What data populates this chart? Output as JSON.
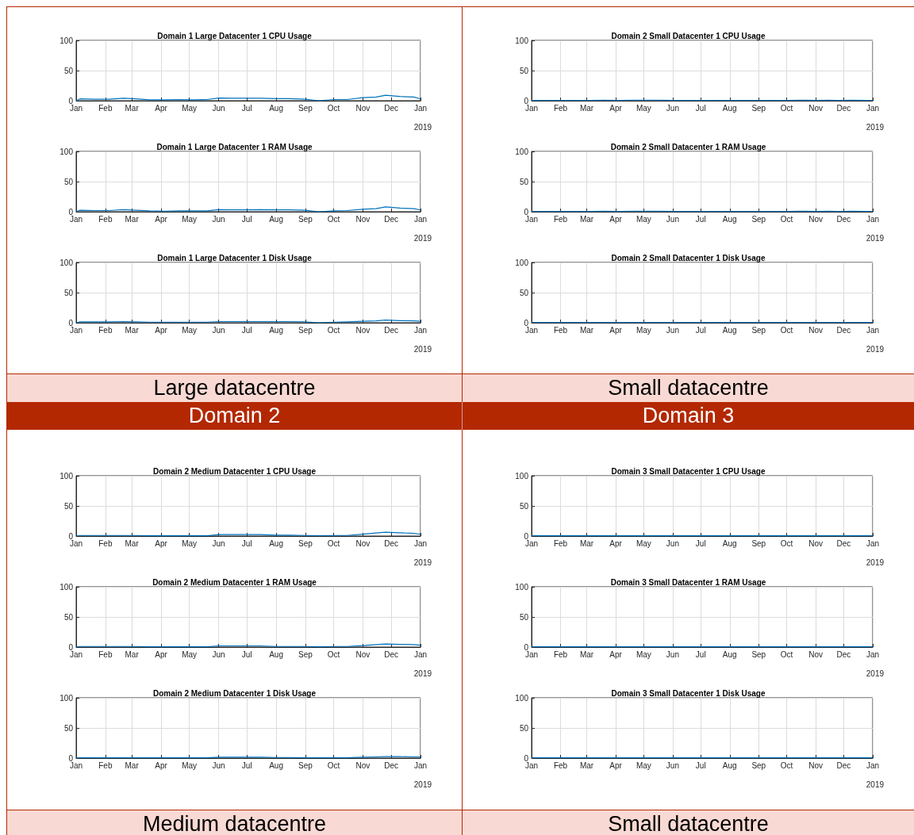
{
  "chart_data": [
    {
      "type": "line",
      "title": "Domain 1 Large Datacenter 1 CPU Usage",
      "xlabel": "2019",
      "annotations": [
        "Large datacentre"
      ],
      "color": "#0072bd",
      "grid": true,
      "xlim": [
        "2018-01-01",
        "2019-01-01"
      ],
      "xticks": [
        {
          "value": "2018-01-01",
          "label": "Jan"
        },
        {
          "value": "2018-02-01",
          "label": "Feb"
        },
        {
          "value": "2018-03-01",
          "label": "Mar"
        },
        {
          "value": "2018-04-01",
          "label": "Apr"
        },
        {
          "value": "2018-05-01",
          "label": "May"
        },
        {
          "value": "2018-06-01",
          "label": "Jun"
        },
        {
          "value": "2018-07-01",
          "label": "Jul"
        },
        {
          "value": "2018-08-01",
          "label": "Aug"
        },
        {
          "value": "2018-09-01",
          "label": "Sep"
        },
        {
          "value": "2018-10-01",
          "label": "Oct"
        },
        {
          "value": "2018-11-01",
          "label": "Nov"
        },
        {
          "value": "2018-12-01",
          "label": "Dec"
        },
        {
          "value": "2019-01-01",
          "label": "Jan"
        }
      ],
      "ylim": [
        0,
        100
      ],
      "yticks": [
        0,
        50,
        100
      ],
      "x": [
        "2018-01-01",
        "2018-01-05",
        "2018-01-20",
        "2018-02-05",
        "2018-02-20",
        "2018-03-05",
        "2018-03-20",
        "2018-04-05",
        "2018-04-20",
        "2018-05-05",
        "2018-05-20",
        "2018-06-01",
        "2018-06-15",
        "2018-07-01",
        "2018-07-15",
        "2018-08-01",
        "2018-08-15",
        "2018-09-01",
        "2018-09-15",
        "2018-10-01",
        "2018-10-15",
        "2018-11-01",
        "2018-11-15",
        "2018-11-25",
        "2018-12-10",
        "2018-12-25",
        "2019-01-01"
      ],
      "values": [
        0,
        3,
        2.5,
        2.5,
        4,
        3,
        1.5,
        1.5,
        2,
        1.5,
        2,
        4.5,
        4,
        4,
        4,
        3.5,
        3.5,
        2.5,
        0,
        2,
        2,
        5,
        6,
        9,
        7,
        6,
        3
      ]
    },
    {
      "type": "line",
      "title": "Domain 1 Large Datacenter 1 RAM Usage",
      "xlabel": "2019",
      "color": "#0072bd",
      "grid": true,
      "xlim": [
        "2018-01-01",
        "2019-01-01"
      ],
      "xticks": [
        {
          "value": "2018-01-01",
          "label": "Jan"
        },
        {
          "value": "2018-02-01",
          "label": "Feb"
        },
        {
          "value": "2018-03-01",
          "label": "Mar"
        },
        {
          "value": "2018-04-01",
          "label": "Apr"
        },
        {
          "value": "2018-05-01",
          "label": "May"
        },
        {
          "value": "2018-06-01",
          "label": "Jun"
        },
        {
          "value": "2018-07-01",
          "label": "Jul"
        },
        {
          "value": "2018-08-01",
          "label": "Aug"
        },
        {
          "value": "2018-09-01",
          "label": "Sep"
        },
        {
          "value": "2018-10-01",
          "label": "Oct"
        },
        {
          "value": "2018-11-01",
          "label": "Nov"
        },
        {
          "value": "2018-12-01",
          "label": "Dec"
        },
        {
          "value": "2019-01-01",
          "label": "Jan"
        }
      ],
      "ylim": [
        0,
        100
      ],
      "yticks": [
        0,
        50,
        100
      ],
      "x": [
        "2018-01-01",
        "2018-01-05",
        "2018-01-20",
        "2018-02-05",
        "2018-02-20",
        "2018-03-05",
        "2018-03-20",
        "2018-04-05",
        "2018-04-20",
        "2018-05-05",
        "2018-05-20",
        "2018-06-01",
        "2018-06-15",
        "2018-07-01",
        "2018-07-15",
        "2018-08-01",
        "2018-08-15",
        "2018-09-01",
        "2018-09-15",
        "2018-10-01",
        "2018-10-15",
        "2018-11-01",
        "2018-11-15",
        "2018-11-25",
        "2018-12-10",
        "2018-12-25",
        "2019-01-01"
      ],
      "values": [
        0,
        2.5,
        2,
        2,
        3.5,
        2.5,
        1.5,
        1,
        1.5,
        1.5,
        1.5,
        3.5,
        3,
        3,
        3.5,
        3,
        3,
        2.5,
        0,
        1.5,
        2,
        4,
        5,
        8,
        6,
        5,
        3
      ]
    },
    {
      "type": "line",
      "title": "Domain 1 Large Datacenter 1 Disk Usage",
      "xlabel": "2019",
      "color": "#0072bd",
      "grid": true,
      "xlim": [
        "2018-01-01",
        "2019-01-01"
      ],
      "xticks": [
        {
          "value": "2018-01-01",
          "label": "Jan"
        },
        {
          "value": "2018-02-01",
          "label": "Feb"
        },
        {
          "value": "2018-03-01",
          "label": "Mar"
        },
        {
          "value": "2018-04-01",
          "label": "Apr"
        },
        {
          "value": "2018-05-01",
          "label": "May"
        },
        {
          "value": "2018-06-01",
          "label": "Jun"
        },
        {
          "value": "2018-07-01",
          "label": "Jul"
        },
        {
          "value": "2018-08-01",
          "label": "Aug"
        },
        {
          "value": "2018-09-01",
          "label": "Sep"
        },
        {
          "value": "2018-10-01",
          "label": "Oct"
        },
        {
          "value": "2018-11-01",
          "label": "Nov"
        },
        {
          "value": "2018-12-01",
          "label": "Dec"
        },
        {
          "value": "2019-01-01",
          "label": "Jan"
        }
      ],
      "ylim": [
        0,
        100
      ],
      "yticks": [
        0,
        50,
        100
      ],
      "x": [
        "2018-01-01",
        "2018-01-05",
        "2018-01-20",
        "2018-02-05",
        "2018-02-20",
        "2018-03-05",
        "2018-03-20",
        "2018-04-05",
        "2018-04-20",
        "2018-05-05",
        "2018-05-20",
        "2018-06-01",
        "2018-06-15",
        "2018-07-01",
        "2018-07-15",
        "2018-08-01",
        "2018-08-15",
        "2018-09-01",
        "2018-09-15",
        "2018-10-01",
        "2018-10-15",
        "2018-11-01",
        "2018-11-15",
        "2018-11-25",
        "2018-12-10",
        "2018-12-25",
        "2019-01-01"
      ],
      "values": [
        0,
        1.5,
        1.5,
        1.5,
        2,
        1.5,
        1,
        1,
        1,
        1,
        1,
        2,
        2,
        2,
        2,
        2,
        2,
        1.5,
        0,
        1,
        1.5,
        2.5,
        3,
        4.5,
        3.5,
        3,
        2.5
      ]
    },
    {
      "type": "line",
      "title": "Domain 2 Small Datacenter 1 CPU Usage",
      "xlabel": "2019",
      "annotations": [
        "Small datacentre"
      ],
      "color": "#0072bd",
      "grid": true,
      "xlim": [
        "2018-01-01",
        "2019-01-01"
      ],
      "xticks": [
        {
          "value": "2018-01-01",
          "label": "Jan"
        },
        {
          "value": "2018-02-01",
          "label": "Feb"
        },
        {
          "value": "2018-03-01",
          "label": "Mar"
        },
        {
          "value": "2018-04-01",
          "label": "Apr"
        },
        {
          "value": "2018-05-01",
          "label": "May"
        },
        {
          "value": "2018-06-01",
          "label": "Jun"
        },
        {
          "value": "2018-07-01",
          "label": "Jul"
        },
        {
          "value": "2018-08-01",
          "label": "Aug"
        },
        {
          "value": "2018-09-01",
          "label": "Sep"
        },
        {
          "value": "2018-10-01",
          "label": "Oct"
        },
        {
          "value": "2018-11-01",
          "label": "Nov"
        },
        {
          "value": "2018-12-01",
          "label": "Dec"
        },
        {
          "value": "2019-01-01",
          "label": "Jan"
        }
      ],
      "ylim": [
        0,
        100
      ],
      "yticks": [
        0,
        50,
        100
      ],
      "x": [
        "2018-01-01",
        "2018-01-05",
        "2018-01-20",
        "2018-02-05",
        "2018-02-20",
        "2018-03-05",
        "2018-03-20",
        "2018-04-05",
        "2018-04-20",
        "2018-05-05",
        "2018-05-20",
        "2018-06-01",
        "2018-06-15",
        "2018-07-01",
        "2018-07-15",
        "2018-08-01",
        "2018-08-15",
        "2018-09-01",
        "2018-09-15",
        "2018-10-01",
        "2018-10-15",
        "2018-11-01",
        "2018-11-15",
        "2018-11-25",
        "2018-12-10",
        "2018-12-25",
        "2019-01-01"
      ],
      "values": [
        0.5,
        0.5,
        0.5,
        0.5,
        0.5,
        0.5,
        1,
        0.5,
        1,
        1,
        1,
        0.5,
        0.5,
        0.5,
        0.5,
        0.5,
        0.5,
        0.5,
        0.5,
        0.5,
        1,
        0.5,
        1,
        0.5,
        1,
        0.5,
        0.5
      ]
    },
    {
      "type": "line",
      "title": "Domain 2 Small Datacenter 1 RAM Usage",
      "xlabel": "2019",
      "color": "#0072bd",
      "grid": true,
      "xlim": [
        "2018-01-01",
        "2019-01-01"
      ],
      "xticks": [
        {
          "value": "2018-01-01",
          "label": "Jan"
        },
        {
          "value": "2018-02-01",
          "label": "Feb"
        },
        {
          "value": "2018-03-01",
          "label": "Mar"
        },
        {
          "value": "2018-04-01",
          "label": "Apr"
        },
        {
          "value": "2018-05-01",
          "label": "May"
        },
        {
          "value": "2018-06-01",
          "label": "Jun"
        },
        {
          "value": "2018-07-01",
          "label": "Jul"
        },
        {
          "value": "2018-08-01",
          "label": "Aug"
        },
        {
          "value": "2018-09-01",
          "label": "Sep"
        },
        {
          "value": "2018-10-01",
          "label": "Oct"
        },
        {
          "value": "2018-11-01",
          "label": "Nov"
        },
        {
          "value": "2018-12-01",
          "label": "Dec"
        },
        {
          "value": "2019-01-01",
          "label": "Jan"
        }
      ],
      "ylim": [
        0,
        100
      ],
      "yticks": [
        0,
        50,
        100
      ],
      "x": [
        "2018-01-01",
        "2018-01-05",
        "2018-01-20",
        "2018-02-05",
        "2018-02-20",
        "2018-03-05",
        "2018-03-20",
        "2018-04-05",
        "2018-04-20",
        "2018-05-05",
        "2018-05-20",
        "2018-06-01",
        "2018-06-15",
        "2018-07-01",
        "2018-07-15",
        "2018-08-01",
        "2018-08-15",
        "2018-09-01",
        "2018-09-15",
        "2018-10-01",
        "2018-10-15",
        "2018-11-01",
        "2018-11-15",
        "2018-11-25",
        "2018-12-10",
        "2018-12-25",
        "2019-01-01"
      ],
      "values": [
        0.5,
        0.5,
        0.5,
        0.5,
        0.5,
        0.5,
        1,
        0.5,
        1,
        1,
        1,
        0.5,
        0.5,
        0.5,
        0.5,
        0.5,
        0.5,
        0.5,
        0.5,
        0.5,
        1,
        0.5,
        1,
        0.5,
        1,
        0.5,
        0.5
      ]
    },
    {
      "type": "line",
      "title": "Domain 2 Small Datacenter 1 Disk Usage",
      "xlabel": "2019",
      "color": "#0072bd",
      "grid": true,
      "xlim": [
        "2018-01-01",
        "2019-01-01"
      ],
      "xticks": [
        {
          "value": "2018-01-01",
          "label": "Jan"
        },
        {
          "value": "2018-02-01",
          "label": "Feb"
        },
        {
          "value": "2018-03-01",
          "label": "Mar"
        },
        {
          "value": "2018-04-01",
          "label": "Apr"
        },
        {
          "value": "2018-05-01",
          "label": "May"
        },
        {
          "value": "2018-06-01",
          "label": "Jun"
        },
        {
          "value": "2018-07-01",
          "label": "Jul"
        },
        {
          "value": "2018-08-01",
          "label": "Aug"
        },
        {
          "value": "2018-09-01",
          "label": "Sep"
        },
        {
          "value": "2018-10-01",
          "label": "Oct"
        },
        {
          "value": "2018-11-01",
          "label": "Nov"
        },
        {
          "value": "2018-12-01",
          "label": "Dec"
        },
        {
          "value": "2019-01-01",
          "label": "Jan"
        }
      ],
      "ylim": [
        0,
        100
      ],
      "yticks": [
        0,
        50,
        100
      ],
      "x": [
        "2018-01-01",
        "2018-01-05",
        "2018-01-20",
        "2018-02-05",
        "2018-02-20",
        "2018-03-05",
        "2018-03-20",
        "2018-04-05",
        "2018-04-20",
        "2018-05-05",
        "2018-05-20",
        "2018-06-01",
        "2018-06-15",
        "2018-07-01",
        "2018-07-15",
        "2018-08-01",
        "2018-08-15",
        "2018-09-01",
        "2018-09-15",
        "2018-10-01",
        "2018-10-15",
        "2018-11-01",
        "2018-11-15",
        "2018-11-25",
        "2018-12-10",
        "2018-12-25",
        "2019-01-01"
      ],
      "values": [
        0.5,
        0.5,
        0.5,
        0.5,
        0.5,
        0.5,
        0.5,
        0.5,
        0.5,
        0.5,
        0.5,
        0.5,
        0.5,
        0.5,
        0.5,
        0.5,
        0.5,
        0.5,
        0.5,
        0.5,
        0.5,
        0.5,
        0.5,
        0.5,
        0.5,
        0.5,
        0.5
      ]
    },
    {
      "type": "line",
      "title": "Domain 2 Medium Datacenter 1 CPU Usage",
      "xlabel": "2019",
      "annotations": [
        "Domain 2",
        "Medium datacentre"
      ],
      "color": "#0072bd",
      "grid": true,
      "xlim": [
        "2018-01-01",
        "2019-01-01"
      ],
      "xticks": [
        {
          "value": "2018-01-01",
          "label": "Jan"
        },
        {
          "value": "2018-02-01",
          "label": "Feb"
        },
        {
          "value": "2018-03-01",
          "label": "Mar"
        },
        {
          "value": "2018-04-01",
          "label": "Apr"
        },
        {
          "value": "2018-05-01",
          "label": "May"
        },
        {
          "value": "2018-06-01",
          "label": "Jun"
        },
        {
          "value": "2018-07-01",
          "label": "Jul"
        },
        {
          "value": "2018-08-01",
          "label": "Aug"
        },
        {
          "value": "2018-09-01",
          "label": "Sep"
        },
        {
          "value": "2018-10-01",
          "label": "Oct"
        },
        {
          "value": "2018-11-01",
          "label": "Nov"
        },
        {
          "value": "2018-12-01",
          "label": "Dec"
        },
        {
          "value": "2019-01-01",
          "label": "Jan"
        }
      ],
      "ylim": [
        0,
        100
      ],
      "yticks": [
        0,
        50,
        100
      ],
      "x": [
        "2018-01-01",
        "2018-01-05",
        "2018-01-20",
        "2018-02-05",
        "2018-02-20",
        "2018-03-05",
        "2018-03-20",
        "2018-04-05",
        "2018-04-20",
        "2018-05-05",
        "2018-05-20",
        "2018-06-01",
        "2018-06-15",
        "2018-07-01",
        "2018-07-15",
        "2018-08-01",
        "2018-08-15",
        "2018-09-01",
        "2018-09-15",
        "2018-10-01",
        "2018-10-15",
        "2018-11-01",
        "2018-11-15",
        "2018-11-25",
        "2018-12-10",
        "2018-12-25",
        "2019-01-01"
      ],
      "values": [
        0,
        1,
        1,
        1,
        1,
        1,
        0.5,
        0.5,
        0.5,
        0.5,
        0.5,
        2.5,
        2.5,
        2.5,
        2.5,
        1.5,
        1.5,
        1,
        0.5,
        1,
        1,
        3,
        5,
        6.5,
        5.5,
        4.5,
        3
      ]
    },
    {
      "type": "line",
      "title": "Domain 2 Medium Datacenter 1 RAM Usage",
      "xlabel": "2019",
      "color": "#0072bd",
      "grid": true,
      "xlim": [
        "2018-01-01",
        "2019-01-01"
      ],
      "xticks": [
        {
          "value": "2018-01-01",
          "label": "Jan"
        },
        {
          "value": "2018-02-01",
          "label": "Feb"
        },
        {
          "value": "2018-03-01",
          "label": "Mar"
        },
        {
          "value": "2018-04-01",
          "label": "Apr"
        },
        {
          "value": "2018-05-01",
          "label": "May"
        },
        {
          "value": "2018-06-01",
          "label": "Jun"
        },
        {
          "value": "2018-07-01",
          "label": "Jul"
        },
        {
          "value": "2018-08-01",
          "label": "Aug"
        },
        {
          "value": "2018-09-01",
          "label": "Sep"
        },
        {
          "value": "2018-10-01",
          "label": "Oct"
        },
        {
          "value": "2018-11-01",
          "label": "Nov"
        },
        {
          "value": "2018-12-01",
          "label": "Dec"
        },
        {
          "value": "2019-01-01",
          "label": "Jan"
        }
      ],
      "ylim": [
        0,
        100
      ],
      "yticks": [
        0,
        50,
        100
      ],
      "x": [
        "2018-01-01",
        "2018-01-05",
        "2018-01-20",
        "2018-02-05",
        "2018-02-20",
        "2018-03-05",
        "2018-03-20",
        "2018-04-05",
        "2018-04-20",
        "2018-05-05",
        "2018-05-20",
        "2018-06-01",
        "2018-06-15",
        "2018-07-01",
        "2018-07-15",
        "2018-08-01",
        "2018-08-15",
        "2018-09-01",
        "2018-09-15",
        "2018-10-01",
        "2018-10-15",
        "2018-11-01",
        "2018-11-15",
        "2018-11-25",
        "2018-12-10",
        "2018-12-25",
        "2019-01-01"
      ],
      "values": [
        0,
        1,
        1,
        1,
        1,
        1,
        0.5,
        0.5,
        0.5,
        0.5,
        0.5,
        2,
        2,
        2,
        2,
        1,
        1,
        1,
        0.5,
        1,
        1,
        2.5,
        4,
        5,
        4.5,
        4,
        3
      ]
    },
    {
      "type": "line",
      "title": "Domain 2 Medium Datacenter 1 Disk Usage",
      "xlabel": "2019",
      "color": "#0072bd",
      "grid": true,
      "xlim": [
        "2018-01-01",
        "2019-01-01"
      ],
      "xticks": [
        {
          "value": "2018-01-01",
          "label": "Jan"
        },
        {
          "value": "2018-02-01",
          "label": "Feb"
        },
        {
          "value": "2018-03-01",
          "label": "Mar"
        },
        {
          "value": "2018-04-01",
          "label": "Apr"
        },
        {
          "value": "2018-05-01",
          "label": "May"
        },
        {
          "value": "2018-06-01",
          "label": "Jun"
        },
        {
          "value": "2018-07-01",
          "label": "Jul"
        },
        {
          "value": "2018-08-01",
          "label": "Aug"
        },
        {
          "value": "2018-09-01",
          "label": "Sep"
        },
        {
          "value": "2018-10-01",
          "label": "Oct"
        },
        {
          "value": "2018-11-01",
          "label": "Nov"
        },
        {
          "value": "2018-12-01",
          "label": "Dec"
        },
        {
          "value": "2019-01-01",
          "label": "Jan"
        }
      ],
      "ylim": [
        0,
        100
      ],
      "yticks": [
        0,
        50,
        100
      ],
      "x": [
        "2018-01-01",
        "2018-01-05",
        "2018-01-20",
        "2018-02-05",
        "2018-02-20",
        "2018-03-05",
        "2018-03-20",
        "2018-04-05",
        "2018-04-20",
        "2018-05-05",
        "2018-05-20",
        "2018-06-01",
        "2018-06-15",
        "2018-07-01",
        "2018-07-15",
        "2018-08-01",
        "2018-08-15",
        "2018-09-01",
        "2018-09-15",
        "2018-10-01",
        "2018-10-15",
        "2018-11-01",
        "2018-11-15",
        "2018-11-25",
        "2018-12-10",
        "2018-12-25",
        "2019-01-01"
      ],
      "values": [
        0,
        0.5,
        0.5,
        0.5,
        0.5,
        0.5,
        0.5,
        0.5,
        0.5,
        0.5,
        0.5,
        1.5,
        1.5,
        1.5,
        1.5,
        1,
        1,
        0.5,
        0.5,
        0.5,
        0.5,
        1.5,
        2,
        2.5,
        2.5,
        2,
        2
      ]
    },
    {
      "type": "line",
      "title": "Domain 3 Small Datacenter 1 CPU Usage",
      "xlabel": "2019",
      "annotations": [
        "Domain 3",
        "Small datacentre"
      ],
      "color": "#0072bd",
      "grid": true,
      "xlim": [
        "2018-01-01",
        "2019-01-01"
      ],
      "xticks": [
        {
          "value": "2018-01-01",
          "label": "Jan"
        },
        {
          "value": "2018-02-01",
          "label": "Feb"
        },
        {
          "value": "2018-03-01",
          "label": "Mar"
        },
        {
          "value": "2018-04-01",
          "label": "Apr"
        },
        {
          "value": "2018-05-01",
          "label": "May"
        },
        {
          "value": "2018-06-01",
          "label": "Jun"
        },
        {
          "value": "2018-07-01",
          "label": "Jul"
        },
        {
          "value": "2018-08-01",
          "label": "Aug"
        },
        {
          "value": "2018-09-01",
          "label": "Sep"
        },
        {
          "value": "2018-10-01",
          "label": "Oct"
        },
        {
          "value": "2018-11-01",
          "label": "Nov"
        },
        {
          "value": "2018-12-01",
          "label": "Dec"
        },
        {
          "value": "2019-01-01",
          "label": "Jan"
        }
      ],
      "ylim": [
        0,
        100
      ],
      "yticks": [
        0,
        50,
        100
      ],
      "x": [
        "2018-01-01",
        "2018-01-05",
        "2018-01-20",
        "2018-02-05",
        "2018-02-20",
        "2018-03-05",
        "2018-03-20",
        "2018-04-05",
        "2018-04-20",
        "2018-05-05",
        "2018-05-20",
        "2018-06-01",
        "2018-06-15",
        "2018-07-01",
        "2018-07-15",
        "2018-08-01",
        "2018-08-15",
        "2018-09-01",
        "2018-09-15",
        "2018-10-01",
        "2018-10-15",
        "2018-11-01",
        "2018-11-15",
        "2018-11-25",
        "2018-12-10",
        "2018-12-25",
        "2019-01-01"
      ],
      "values": [
        0.5,
        0.5,
        0.5,
        0.5,
        0.5,
        0.5,
        0.5,
        0.5,
        0.5,
        0.5,
        0.5,
        0.5,
        0.5,
        0.5,
        0.5,
        0.5,
        0.5,
        0.5,
        0.5,
        0.5,
        0.5,
        0.5,
        0.5,
        0.5,
        0.5,
        0.5,
        0.5
      ]
    },
    {
      "type": "line",
      "title": "Domain 3 Small Datacenter 1 RAM Usage",
      "xlabel": "2019",
      "color": "#0072bd",
      "grid": true,
      "xlim": [
        "2018-01-01",
        "2019-01-01"
      ],
      "xticks": [
        {
          "value": "2018-01-01",
          "label": "Jan"
        },
        {
          "value": "2018-02-01",
          "label": "Feb"
        },
        {
          "value": "2018-03-01",
          "label": "Mar"
        },
        {
          "value": "2018-04-01",
          "label": "Apr"
        },
        {
          "value": "2018-05-01",
          "label": "May"
        },
        {
          "value": "2018-06-01",
          "label": "Jun"
        },
        {
          "value": "2018-07-01",
          "label": "Jul"
        },
        {
          "value": "2018-08-01",
          "label": "Aug"
        },
        {
          "value": "2018-09-01",
          "label": "Sep"
        },
        {
          "value": "2018-10-01",
          "label": "Oct"
        },
        {
          "value": "2018-11-01",
          "label": "Nov"
        },
        {
          "value": "2018-12-01",
          "label": "Dec"
        },
        {
          "value": "2019-01-01",
          "label": "Jan"
        }
      ],
      "ylim": [
        0,
        100
      ],
      "yticks": [
        0,
        50,
        100
      ],
      "x": [
        "2018-01-01",
        "2018-01-05",
        "2018-01-20",
        "2018-02-05",
        "2018-02-20",
        "2018-03-05",
        "2018-03-20",
        "2018-04-05",
        "2018-04-20",
        "2018-05-05",
        "2018-05-20",
        "2018-06-01",
        "2018-06-15",
        "2018-07-01",
        "2018-07-15",
        "2018-08-01",
        "2018-08-15",
        "2018-09-01",
        "2018-09-15",
        "2018-10-01",
        "2018-10-15",
        "2018-11-01",
        "2018-11-15",
        "2018-11-25",
        "2018-12-10",
        "2018-12-25",
        "2019-01-01"
      ],
      "values": [
        0.5,
        0.5,
        0.5,
        0.5,
        0.5,
        0.5,
        0.5,
        0.5,
        0.5,
        0.5,
        0.5,
        0.5,
        0.5,
        0.5,
        0.5,
        0.5,
        0.5,
        0.5,
        0.5,
        0.5,
        0.5,
        0.5,
        0.5,
        0.5,
        0.5,
        0.5,
        0.5
      ]
    },
    {
      "type": "line",
      "title": "Domain 3 Small Datacenter 1 Disk Usage",
      "xlabel": "2019",
      "color": "#0072bd",
      "grid": true,
      "xlim": [
        "2018-01-01",
        "2019-01-01"
      ],
      "xticks": [
        {
          "value": "2018-01-01",
          "label": "Jan"
        },
        {
          "value": "2018-02-01",
          "label": "Feb"
        },
        {
          "value": "2018-03-01",
          "label": "Mar"
        },
        {
          "value": "2018-04-01",
          "label": "Apr"
        },
        {
          "value": "2018-05-01",
          "label": "May"
        },
        {
          "value": "2018-06-01",
          "label": "Jun"
        },
        {
          "value": "2018-07-01",
          "label": "Jul"
        },
        {
          "value": "2018-08-01",
          "label": "Aug"
        },
        {
          "value": "2018-09-01",
          "label": "Sep"
        },
        {
          "value": "2018-10-01",
          "label": "Oct"
        },
        {
          "value": "2018-11-01",
          "label": "Nov"
        },
        {
          "value": "2018-12-01",
          "label": "Dec"
        },
        {
          "value": "2019-01-01",
          "label": "Jan"
        }
      ],
      "ylim": [
        0,
        100
      ],
      "yticks": [
        0,
        50,
        100
      ],
      "x": [
        "2018-01-01",
        "2018-01-05",
        "2018-01-20",
        "2018-02-05",
        "2018-02-20",
        "2018-03-05",
        "2018-03-20",
        "2018-04-05",
        "2018-04-20",
        "2018-05-05",
        "2018-05-20",
        "2018-06-01",
        "2018-06-15",
        "2018-07-01",
        "2018-07-15",
        "2018-08-01",
        "2018-08-15",
        "2018-09-01",
        "2018-09-15",
        "2018-10-01",
        "2018-10-15",
        "2018-11-01",
        "2018-11-15",
        "2018-11-25",
        "2018-12-10",
        "2018-12-25",
        "2019-01-01"
      ],
      "values": [
        0.5,
        0.5,
        0.5,
        0.5,
        0.5,
        0.5,
        0.5,
        0.5,
        0.5,
        0.5,
        0.5,
        0.5,
        0.5,
        0.5,
        0.5,
        0.5,
        0.5,
        0.5,
        0.5,
        0.5,
        0.5,
        0.5,
        0.5,
        0.5,
        0.5,
        0.5,
        0.5
      ]
    }
  ]
}
